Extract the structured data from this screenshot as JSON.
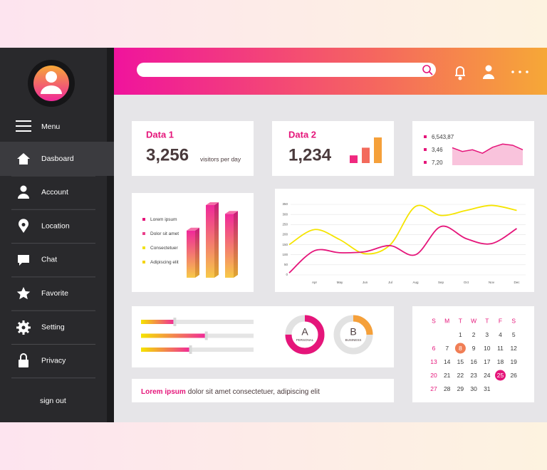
{
  "sidebar": {
    "menu": "Menu",
    "items": [
      "Dasboard",
      "Account",
      "Location",
      "Chat",
      "Favorite",
      "Setting",
      "Privacy"
    ],
    "active": 0,
    "sign_out": "sign out"
  },
  "cards": [
    {
      "title": "Data 1",
      "value": "3,256",
      "unit": "visitors per day"
    },
    {
      "title": "Data 2",
      "value": "1,234"
    }
  ],
  "footer": {
    "highlight": "Lorem ipsum",
    "text": "dolor sit amet consectetuer, adipiscing elit"
  },
  "calendar": {
    "weekdays": [
      "S",
      "M",
      "T",
      "W",
      "T",
      "F",
      "S"
    ],
    "weeks": [
      [
        null,
        null,
        1,
        2,
        3,
        4,
        5
      ],
      [
        6,
        7,
        8,
        9,
        10,
        11,
        12
      ],
      [
        13,
        14,
        15,
        16,
        17,
        18,
        19
      ],
      [
        20,
        21,
        22,
        23,
        24,
        25,
        26
      ],
      [
        27,
        28,
        29,
        30,
        31,
        null,
        null
      ]
    ],
    "highlighted": [
      {
        "day": 8,
        "color": "#f07e55"
      },
      {
        "day": 25,
        "color": "#e5157a"
      }
    ],
    "sunday_color": "#e5157a"
  },
  "chart_data": [
    {
      "type": "bar",
      "values": [
        30,
        60,
        100
      ],
      "colors": [
        "#f0287f",
        "#f36a5c",
        "#f5a03a"
      ]
    },
    {
      "type": "area",
      "legend": [
        "6,543,87",
        "3,46",
        "7,20"
      ],
      "legend_color": "#e5157a",
      "values": [
        70,
        55,
        62,
        48,
        72,
        85,
        80,
        62
      ],
      "color": "#e5157a",
      "fill": "#f9c3dc"
    },
    {
      "type": "bar3d",
      "legend": [
        {
          "name": "Lorem ipsum",
          "color": "#e5157a"
        },
        {
          "name": "Dolor sit amet",
          "color": "#ea3f8a"
        },
        {
          "name": "Consectetuer",
          "color": "#f2e21a"
        },
        {
          "name": "Adipiscing elit",
          "color": "#f5d300"
        }
      ],
      "values": [
        65,
        100,
        88
      ]
    },
    {
      "type": "line",
      "categories": [
        null,
        "Apr",
        "May",
        "Jun",
        "Jul",
        "Aug",
        "Sep",
        "Oct",
        "Nov",
        "Dec"
      ],
      "series": [
        {
          "color": "#f5e400",
          "values": [
            150,
            225,
            175,
            105,
            150,
            340,
            295,
            320,
            345,
            320
          ]
        },
        {
          "color": "#e5157a",
          "values": [
            10,
            120,
            110,
            115,
            145,
            100,
            240,
            180,
            155,
            230
          ]
        }
      ],
      "ylim": [
        0,
        350
      ],
      "yticks": [
        0,
        50,
        100,
        150,
        200,
        250,
        300,
        350
      ],
      "grid": true
    },
    {
      "type": "progress",
      "xlim": [
        0,
        100
      ],
      "values": [
        30,
        58,
        44
      ]
    },
    {
      "type": "donut",
      "total": 100,
      "items": [
        {
          "letter": "A",
          "label": "PERSONAL",
          "value": 75,
          "color": "#e5157a"
        },
        {
          "letter": "B",
          "label": "BUSINESS",
          "value": 25,
          "color": "#f5a03a"
        }
      ]
    }
  ]
}
